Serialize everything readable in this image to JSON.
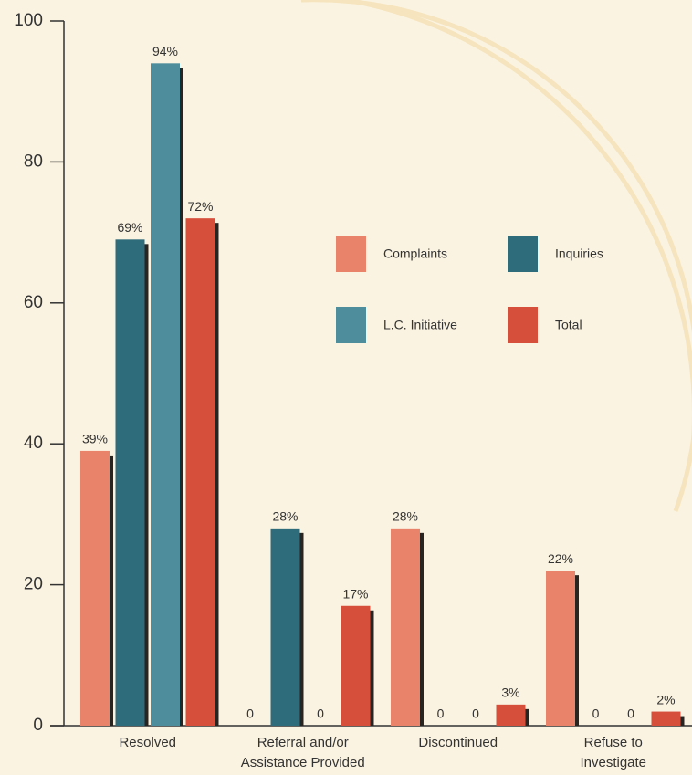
{
  "chart_data": {
    "type": "bar",
    "categories": [
      "Resolved",
      "Referral and/or Assistance Provided",
      "Discontinued",
      "Refuse to Investigate"
    ],
    "series": [
      {
        "name": "Complaints",
        "color": "#e9836a",
        "values": [
          39,
          0,
          28,
          22
        ],
        "value_labels": [
          "39%",
          "0",
          "28%",
          "22%"
        ]
      },
      {
        "name": "Inquiries",
        "color": "#2e6c7c",
        "values": [
          69,
          28,
          0,
          0
        ],
        "value_labels": [
          "69%",
          "28%",
          "0",
          "0"
        ]
      },
      {
        "name": "L.C. Initiative",
        "color": "#4e8d9b",
        "values": [
          94,
          0,
          0,
          0
        ],
        "value_labels": [
          "94%",
          "0",
          "0",
          "0"
        ]
      },
      {
        "name": "Total",
        "color": "#d64f3b",
        "values": [
          72,
          17,
          3,
          2
        ],
        "value_labels": [
          "72%",
          "17%",
          "3%",
          "2%"
        ]
      }
    ],
    "ylim": [
      0,
      100
    ],
    "yticks": [
      0,
      20,
      40,
      60,
      80,
      100
    ],
    "grid": false
  }
}
